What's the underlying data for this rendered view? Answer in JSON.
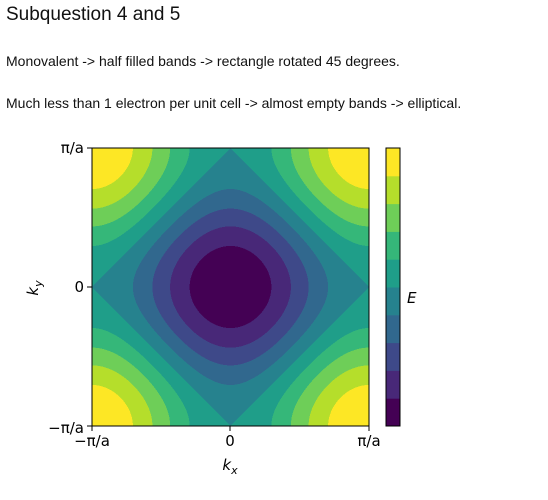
{
  "heading": "Subquestion 4 and 5",
  "paragraphs": [
    "Monovalent -> half filled bands -> rectangle rotated 45 degrees.",
    "Much less than 1 electron per unit cell -> almost empty bands -> elliptical."
  ],
  "chart_data": {
    "type": "heatmap",
    "title": "",
    "function": "E = -cos(kx*a) - cos(ky*a)",
    "xlabel": "k_x",
    "ylabel": "k_y",
    "colorbar_label": "E",
    "xlim": [
      "-π/a",
      "π/a"
    ],
    "ylim": [
      "-π/a",
      "π/a"
    ],
    "xticks": [
      "−π/a",
      "0",
      "π/a"
    ],
    "yticks": [
      "π/a",
      "0",
      "−π/a"
    ],
    "zlim": [
      -2,
      2
    ],
    "levels": [
      -2.0,
      -1.6,
      -1.2,
      -0.8,
      -0.4,
      0.0,
      0.4,
      0.8,
      1.2,
      1.6,
      2.0
    ],
    "colormap": "viridis",
    "colors": [
      "#440154",
      "#482878",
      "#3e4989",
      "#31688e",
      "#26828e",
      "#1f9e89",
      "#35b779",
      "#6ece58",
      "#b5de2b",
      "#fde725"
    ]
  }
}
